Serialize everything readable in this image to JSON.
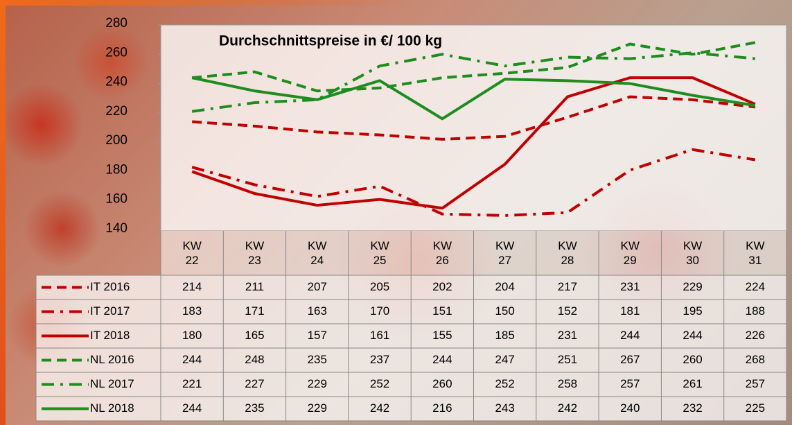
{
  "chart_data": {
    "type": "line",
    "title": "Durchschnittspreise in €/ 100 kg",
    "categories": [
      "KW 22",
      "KW 23",
      "KW 24",
      "KW 25",
      "KW 26",
      "KW 27",
      "KW 28",
      "KW 29",
      "KW 30",
      "KW 31"
    ],
    "ylim": [
      140,
      280
    ],
    "yticks": [
      140,
      160,
      180,
      200,
      220,
      240,
      260,
      280
    ],
    "grid": false,
    "series": [
      {
        "name": "IT 2016",
        "color": "#c00000",
        "dash": "dashed",
        "values": [
          214,
          211,
          207,
          205,
          202,
          204,
          217,
          231,
          229,
          224
        ]
      },
      {
        "name": "IT 2017",
        "color": "#c00000",
        "dash": "dashdot",
        "values": [
          183,
          171,
          163,
          170,
          151,
          150,
          152,
          181,
          195,
          188
        ]
      },
      {
        "name": "IT 2018",
        "color": "#c00000",
        "dash": "solid",
        "values": [
          180,
          165,
          157,
          161,
          155,
          185,
          231,
          244,
          244,
          226
        ]
      },
      {
        "name": "NL 2016",
        "color": "#1e8c1e",
        "dash": "dashed",
        "values": [
          244,
          248,
          235,
          237,
          244,
          247,
          251,
          267,
          260,
          268
        ]
      },
      {
        "name": "NL 2017",
        "color": "#1e8c1e",
        "dash": "dashdot",
        "values": [
          221,
          227,
          229,
          252,
          260,
          252,
          258,
          257,
          261,
          257
        ]
      },
      {
        "name": "NL 2018",
        "color": "#1e8c1e",
        "dash": "solid",
        "values": [
          244,
          235,
          229,
          242,
          216,
          243,
          242,
          240,
          232,
          225
        ]
      }
    ]
  }
}
